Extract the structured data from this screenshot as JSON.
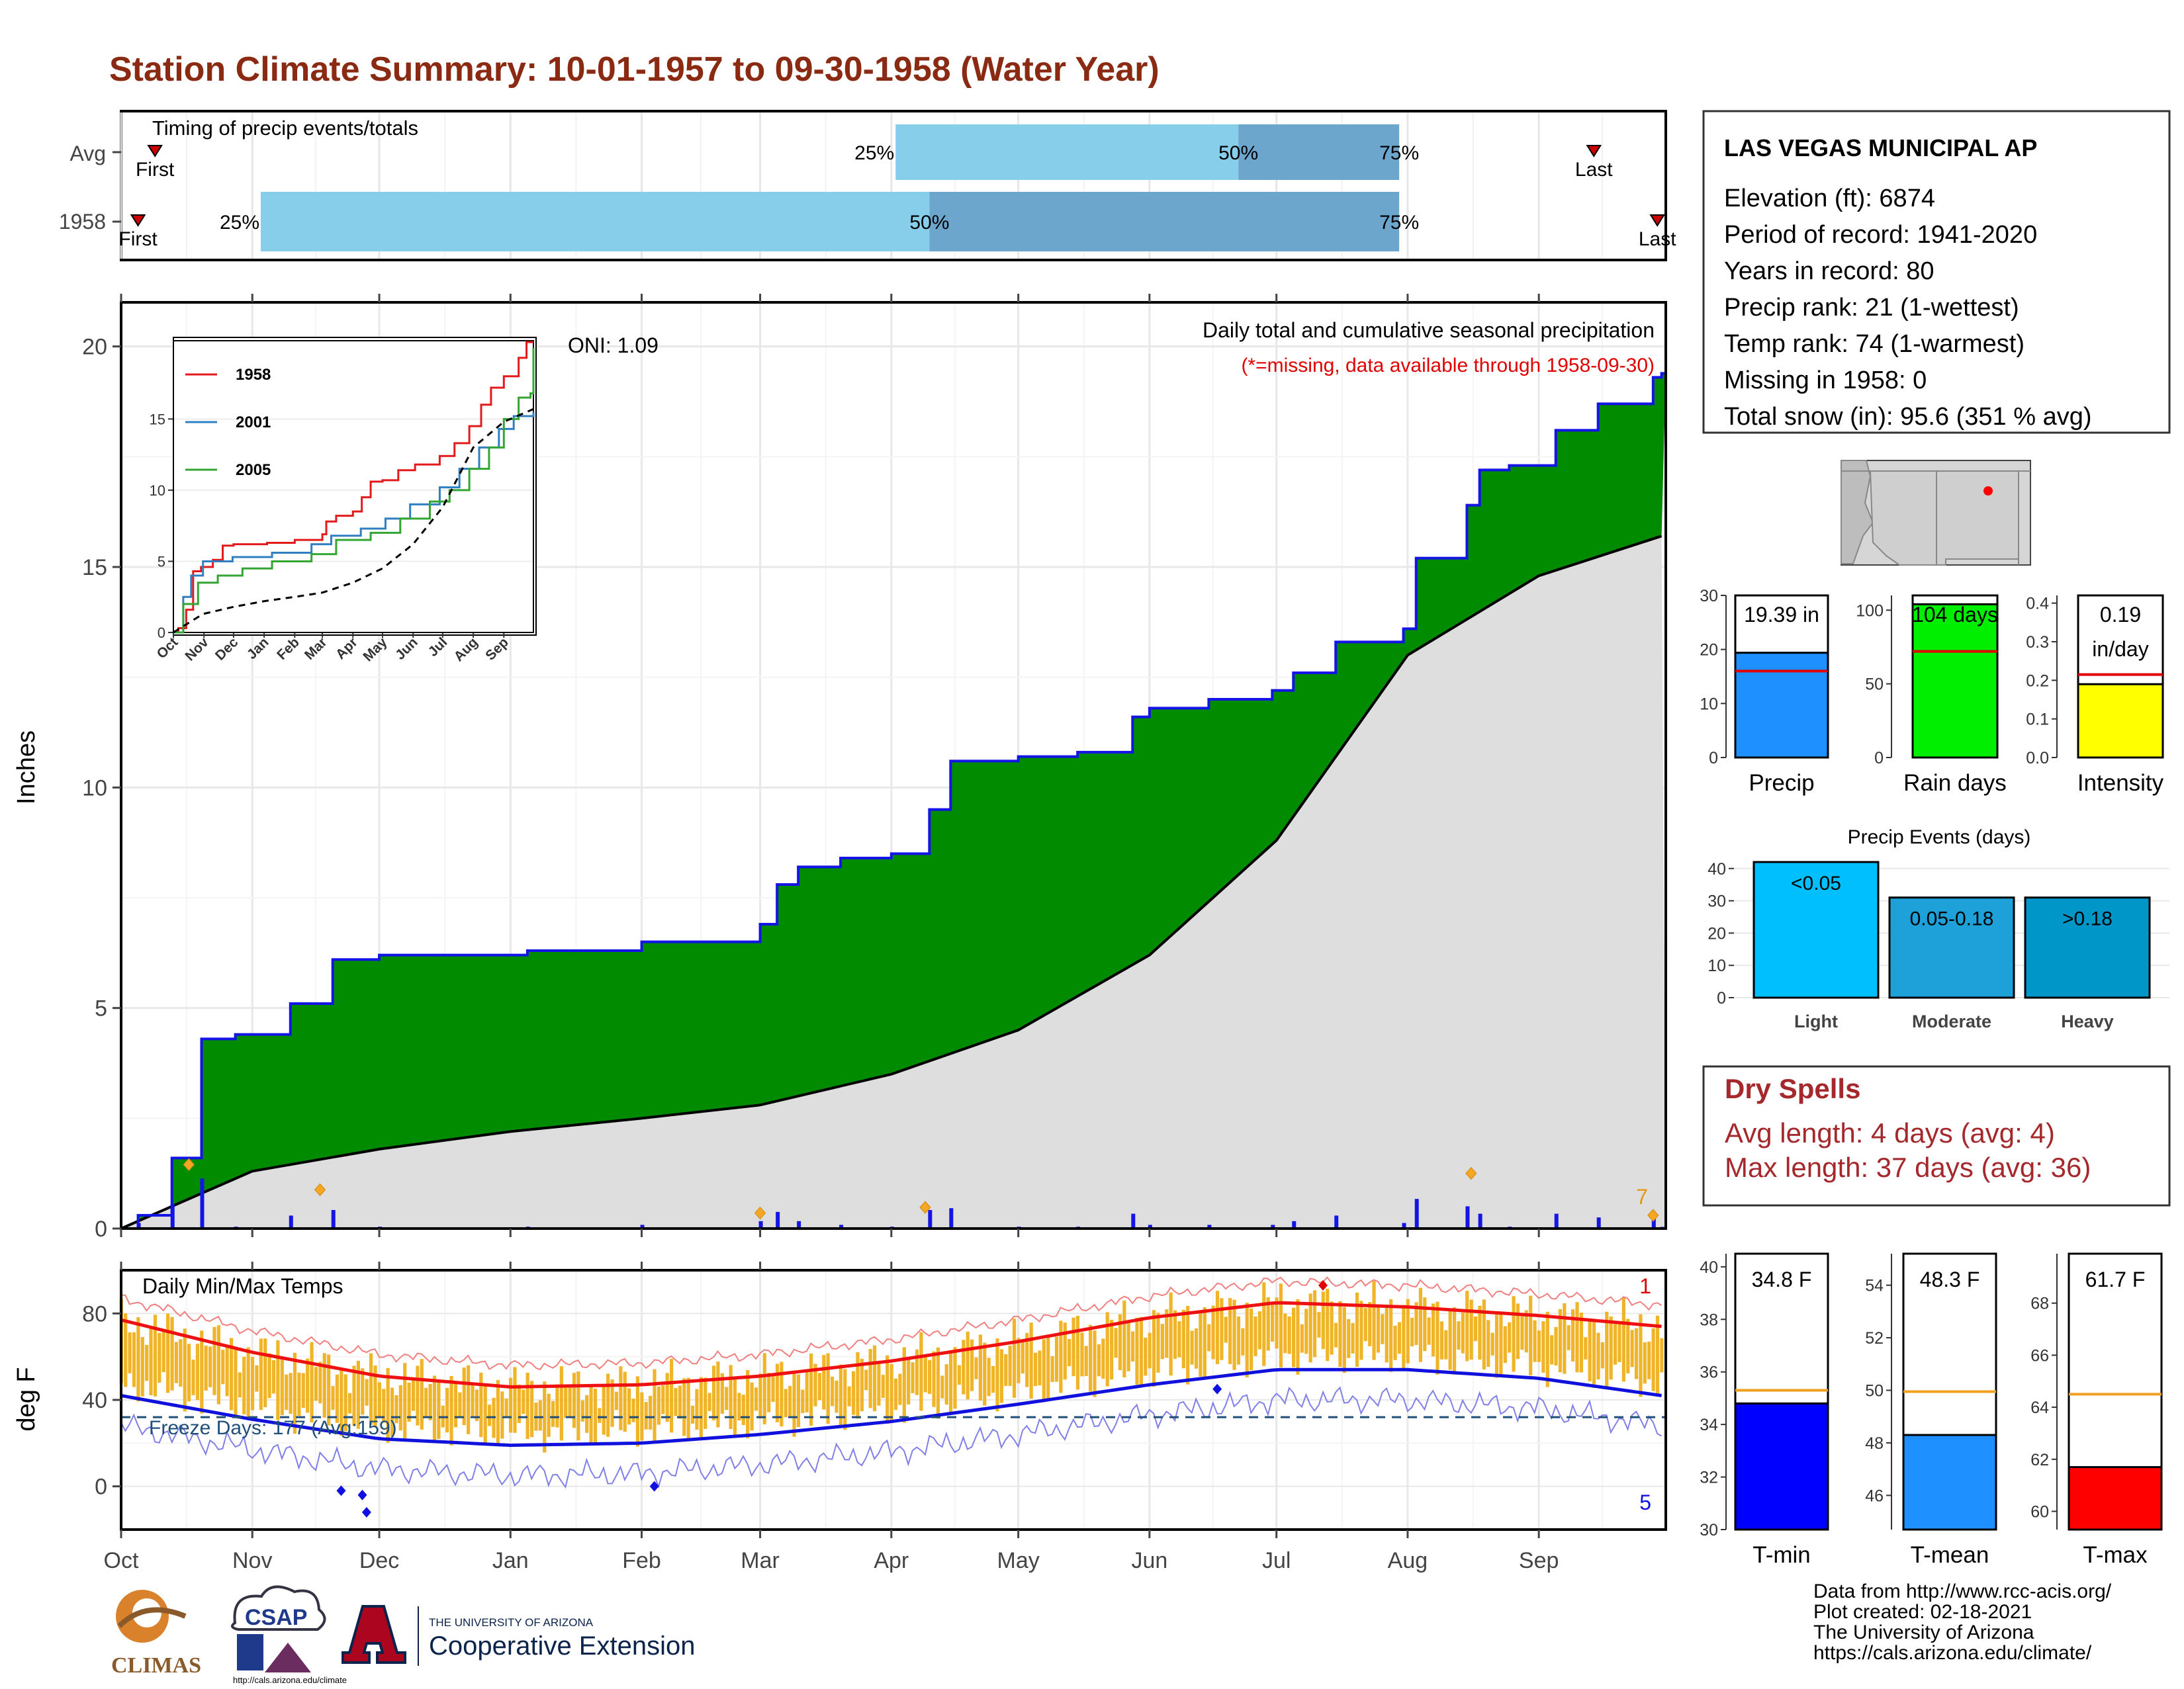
{
  "title": "Station Climate Summary: 10-01-1957 to 09-30-1958 (Water Year)",
  "timing_panel": {
    "label": "Timing of precip events/totals",
    "rows": [
      {
        "name": "Avg",
        "first_label": "First",
        "last_label": "Last",
        "q25_label": "25%",
        "q50_label": "50%",
        "q75_label": "75%",
        "first_day": 8,
        "q25_day": 183,
        "q50_day": 264,
        "q75_day": 302,
        "last_day": 348
      },
      {
        "name": "1958",
        "first_label": "First",
        "last_label": "Last",
        "q25_label": "25%",
        "q50_label": "50%",
        "q75_label": "75%",
        "first_day": 4,
        "q25_day": 33,
        "q50_day": 191,
        "q75_day": 302,
        "last_day": 363
      }
    ]
  },
  "precip_panel": {
    "title": "Daily total and cumulative seasonal precipitation",
    "subtitle": "(*=missing, data available through 1958-09-30)",
    "oni": "ONI: 1.09",
    "ylabel": "Inches",
    "corner_count": "7"
  },
  "inset": {
    "series": [
      {
        "name": "1958",
        "color": "#e31a1c"
      },
      {
        "name": "2001",
        "color": "#2f7fc1"
      },
      {
        "name": "2005",
        "color": "#33a532"
      }
    ]
  },
  "temp_panel": {
    "label": "Daily Min/Max Temps",
    "freeze_label": "Freeze Days: 177 (Avg:159)",
    "ylabel": "deg F",
    "max_record_count": "1",
    "min_record_count": "5"
  },
  "months": [
    "Oct",
    "Nov",
    "Dec",
    "Jan",
    "Feb",
    "Mar",
    "Apr",
    "May",
    "Jun",
    "Jul",
    "Aug",
    "Sep"
  ],
  "station": {
    "name": "LAS VEGAS MUNICIPAL AP",
    "lines": [
      "Elevation (ft): 6874",
      "Period of record: 1941-2020",
      "Years in record: 80",
      "Precip rank: 21 (1-wettest)",
      "Temp rank: 74 (1-warmest)",
      "Missing in 1958: 0",
      "Total snow (in): 95.6 (351 % avg)"
    ]
  },
  "dry_spells": {
    "title": "Dry Spells",
    "avg_line": "Avg length: 4 days (avg: 4)",
    "max_line": "Max length: 37 days (avg: 36)"
  },
  "events_panel": {
    "title": "Precip Events (days)"
  },
  "credits": [
    "Data from http://www.rcc-acis.org/",
    "Plot created: 02-18-2021",
    "The University of Arizona",
    "https://cals.arizona.edu/climate/"
  ],
  "logos": {
    "climas": "CLIMAS",
    "csap": "CSAP",
    "ua_small": "THE UNIVERSITY OF ARIZONA",
    "ua_big": "Cooperative Extension",
    "csap_url": "http://cals.arizona.edu/climate"
  },
  "chart_data": [
    {
      "type": "area",
      "title": "Daily total and cumulative seasonal precipitation",
      "ylabel": "Inches",
      "x_axis": "water-year months",
      "ylim": [
        0,
        21
      ],
      "yticks": [
        0,
        5,
        10,
        15,
        20
      ],
      "series": [
        {
          "name": "1958 cumulative",
          "x": [
            "1957-10-01",
            "1957-10-05",
            "1957-10-13",
            "1957-10-20",
            "1957-10-28",
            "1957-11-10",
            "1957-11-20",
            "1957-12-01",
            "1957-12-20",
            "1958-01-05",
            "1958-02-01",
            "1958-03-01",
            "1958-03-05",
            "1958-03-10",
            "1958-03-20",
            "1958-04-01",
            "1958-04-10",
            "1958-04-15",
            "1958-04-30",
            "1958-05-01",
            "1958-05-15",
            "1958-05-28",
            "1958-06-01",
            "1958-06-15",
            "1958-06-30",
            "1958-07-05",
            "1958-07-15",
            "1958-07-31",
            "1958-08-03",
            "1958-08-15",
            "1958-08-18",
            "1958-08-25",
            "1958-09-05",
            "1958-09-15",
            "1958-09-28",
            "1958-09-30"
          ],
          "values": [
            0,
            0.3,
            1.6,
            4.3,
            4.4,
            5.1,
            6.1,
            6.2,
            6.2,
            6.3,
            6.5,
            6.9,
            7.8,
            8.2,
            8.4,
            8.5,
            9.5,
            10.6,
            10.6,
            10.7,
            10.8,
            11.6,
            11.8,
            12.0,
            12.2,
            12.6,
            13.3,
            13.6,
            15.2,
            16.4,
            17.2,
            17.3,
            18.1,
            18.7,
            19.3,
            19.39
          ]
        },
        {
          "name": "Avg cumulative",
          "x": [
            "1957-10-01",
            "1957-11-01",
            "1957-12-01",
            "1958-01-01",
            "1958-02-01",
            "1958-03-01",
            "1958-04-01",
            "1958-05-01",
            "1958-06-01",
            "1958-07-01",
            "1958-08-01",
            "1958-09-01",
            "1958-09-30"
          ],
          "values": [
            0,
            1.3,
            1.8,
            2.2,
            2.5,
            2.8,
            3.5,
            4.5,
            6.2,
            8.8,
            13.0,
            14.8,
            15.7
          ]
        }
      ]
    },
    {
      "type": "line",
      "title": "Daily Min/Max Temps",
      "ylabel": "deg F",
      "ylim": [
        -20,
        100
      ],
      "yticks": [
        0,
        40,
        80
      ],
      "freeze_line": 32,
      "series": [
        {
          "name": "Avg max",
          "x": [
            "Oct",
            "Nov",
            "Dec",
            "Jan",
            "Feb",
            "Mar",
            "Apr",
            "May",
            "Jun",
            "Jul",
            "Aug",
            "Sep",
            "Sep-end"
          ],
          "values": [
            77,
            62,
            51,
            46,
            47,
            51,
            58,
            67,
            78,
            85,
            83,
            79,
            74
          ]
        },
        {
          "name": "Avg min",
          "x": [
            "Oct",
            "Nov",
            "Dec",
            "Jan",
            "Feb",
            "Mar",
            "Apr",
            "May",
            "Jun",
            "Jul",
            "Aug",
            "Sep",
            "Sep-end"
          ],
          "values": [
            42,
            31,
            22,
            19,
            20,
            24,
            30,
            38,
            47,
            54,
            54,
            50,
            42
          ]
        }
      ]
    },
    {
      "type": "bar",
      "title": "Precip",
      "categories": [
        "Precip"
      ],
      "values": [
        19.39
      ],
      "avg": 16.0,
      "label": "19.39 in",
      "ylim": [
        0,
        30
      ],
      "yticks": [
        0,
        10,
        20,
        30
      ]
    },
    {
      "type": "bar",
      "title": "Rain days",
      "categories": [
        "Rain days"
      ],
      "values": [
        104
      ],
      "avg": 72,
      "label": "104 days",
      "ylim": [
        0,
        110
      ],
      "yticks": [
        0,
        50,
        100
      ]
    },
    {
      "type": "bar",
      "title": "Intensity",
      "categories": [
        "Intensity"
      ],
      "values": [
        0.19
      ],
      "avg": 0.215,
      "label": "0.19",
      "label2": "in/day",
      "ylim": [
        0,
        0.42
      ],
      "yticks": [
        0.0,
        0.1,
        0.2,
        0.3,
        0.4
      ]
    },
    {
      "type": "bar",
      "title": "Precip Events (days)",
      "categories": [
        "Light",
        "Moderate",
        "Heavy"
      ],
      "bar_labels": [
        "<0.05",
        "0.05-0.18",
        ">0.18"
      ],
      "values": [
        42,
        31,
        31
      ],
      "ylim": [
        0,
        42
      ],
      "yticks": [
        0,
        10,
        20,
        30,
        40
      ]
    },
    {
      "type": "bar",
      "title": "T-min",
      "categories": [
        "T-min"
      ],
      "values": [
        34.8
      ],
      "avg": 35.3,
      "label": "34.8 F",
      "ylim": [
        30,
        40.5
      ],
      "yticks": [
        30,
        32,
        34,
        36,
        38,
        40
      ]
    },
    {
      "type": "bar",
      "title": "T-mean",
      "categories": [
        "T-mean"
      ],
      "values": [
        48.3
      ],
      "avg": 49.95,
      "label": "48.3 F",
      "ylim": [
        44.7,
        55.2
      ],
      "yticks": [
        46,
        48,
        50,
        52,
        54
      ]
    },
    {
      "type": "bar",
      "title": "T-max",
      "categories": [
        "T-max"
      ],
      "values": [
        61.7
      ],
      "avg": 64.5,
      "label": "61.7 F",
      "ylim": [
        59.3,
        69.9
      ],
      "yticks": [
        60,
        62,
        64,
        66,
        68
      ]
    }
  ]
}
